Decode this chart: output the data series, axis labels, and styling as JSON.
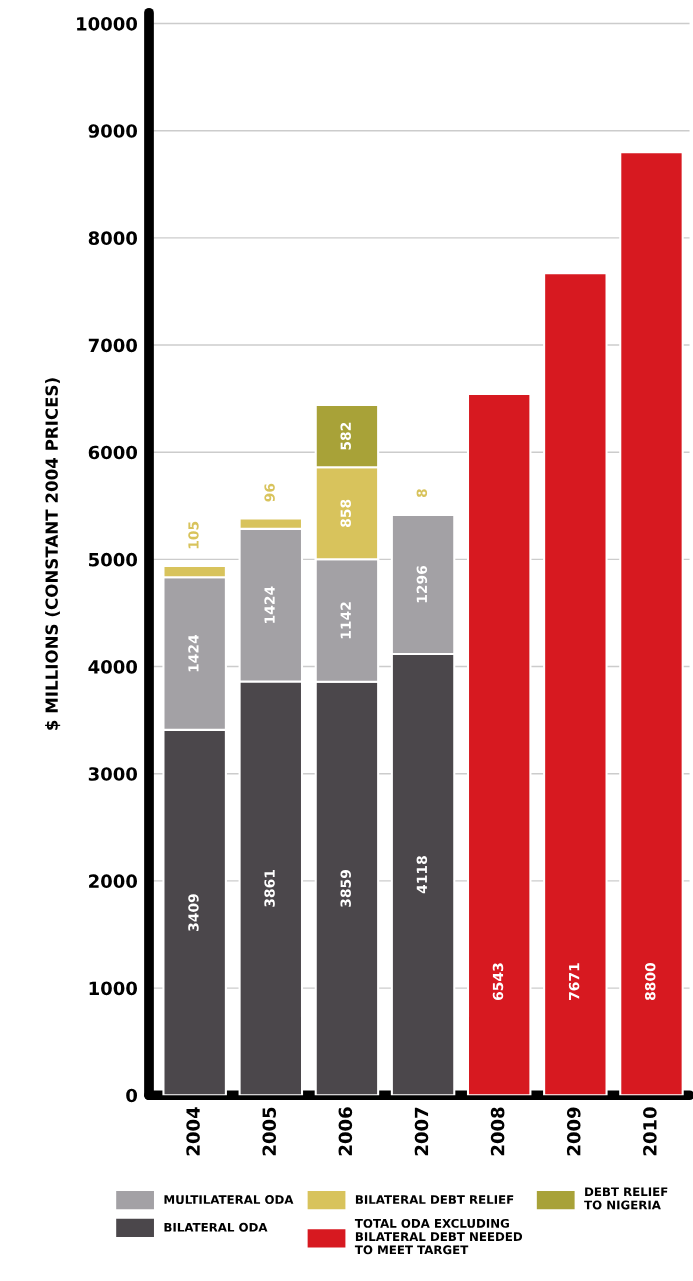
{
  "chart_data": {
    "type": "bar",
    "stacked": true,
    "ylabel": "$ MILLIONS (CONSTANT 2004 PRICES)",
    "categories": [
      "2004",
      "2005",
      "2006",
      "2007",
      "2008",
      "2009",
      "2010"
    ],
    "series": [
      {
        "name": "BILATERAL ODA",
        "color": "#4b474b",
        "values": [
          3409,
          3861,
          3859,
          4118,
          null,
          null,
          null
        ]
      },
      {
        "name": "MULTILATERAL ODA",
        "color": "#a3a1a5",
        "values": [
          1424,
          1424,
          1142,
          1296,
          null,
          null,
          null
        ]
      },
      {
        "name": "BILATERAL DEBT RELIEF",
        "color": "#d8c35c",
        "values": [
          105,
          96,
          858,
          8,
          null,
          null,
          null
        ]
      },
      {
        "name": "DEBT RELIEF\nTO NIGERIA",
        "color": "#a8a238",
        "values": [
          null,
          null,
          582,
          null,
          null,
          null,
          null
        ]
      },
      {
        "name": "TOTAL ODA EXCLUDING\nBILATERAL DEBT NEEDED\nTO MEET TARGET",
        "color": "#d71920",
        "values": [
          null,
          null,
          null,
          null,
          6543,
          7671,
          8800
        ]
      }
    ],
    "ylim": [
      0,
      10100
    ],
    "yticks": [
      0,
      1000,
      2000,
      3000,
      4000,
      5000,
      6000,
      7000,
      8000,
      9000,
      10000
    ],
    "grid": "y",
    "legend": "bottom",
    "data_labels": true
  }
}
